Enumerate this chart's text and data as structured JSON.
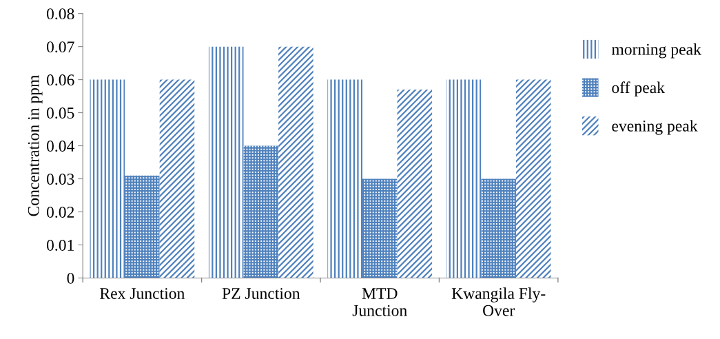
{
  "chart_data": {
    "type": "bar",
    "ylabel": "Concentration in ppm",
    "categories": [
      "Rex Junction",
      "PZ Junction",
      "MTD\nJunction",
      "Kwangila Fly-\nOver"
    ],
    "series": [
      {
        "name": "morning peak",
        "color": "#4f81bd",
        "values": [
          0.06,
          0.07,
          0.06,
          0.06
        ]
      },
      {
        "name": "off peak",
        "color": "#4f81bd",
        "values": [
          0.031,
          0.04,
          0.03,
          0.03
        ]
      },
      {
        "name": "evening peak",
        "color": "#4f81bd",
        "values": [
          0.06,
          0.07,
          0.057,
          0.06
        ]
      }
    ],
    "ylim": [
      0,
      0.08
    ],
    "yticks": [
      "0",
      {
        "value": 0.01,
        "label": "0.01"
      },
      {
        "value": 0.02,
        "label": "0.02"
      },
      {
        "value": 0.03,
        "label": "0.03"
      },
      {
        "value": 0.04,
        "label": "0.04"
      },
      {
        "value": 0.05,
        "label": "0.05"
      },
      {
        "value": 0.06,
        "label": "0.06"
      },
      {
        "value": 0.07,
        "label": "0.07"
      },
      {
        "value": 0.08,
        "label": "0.08"
      }
    ],
    "grid": false,
    "legend": "right"
  }
}
